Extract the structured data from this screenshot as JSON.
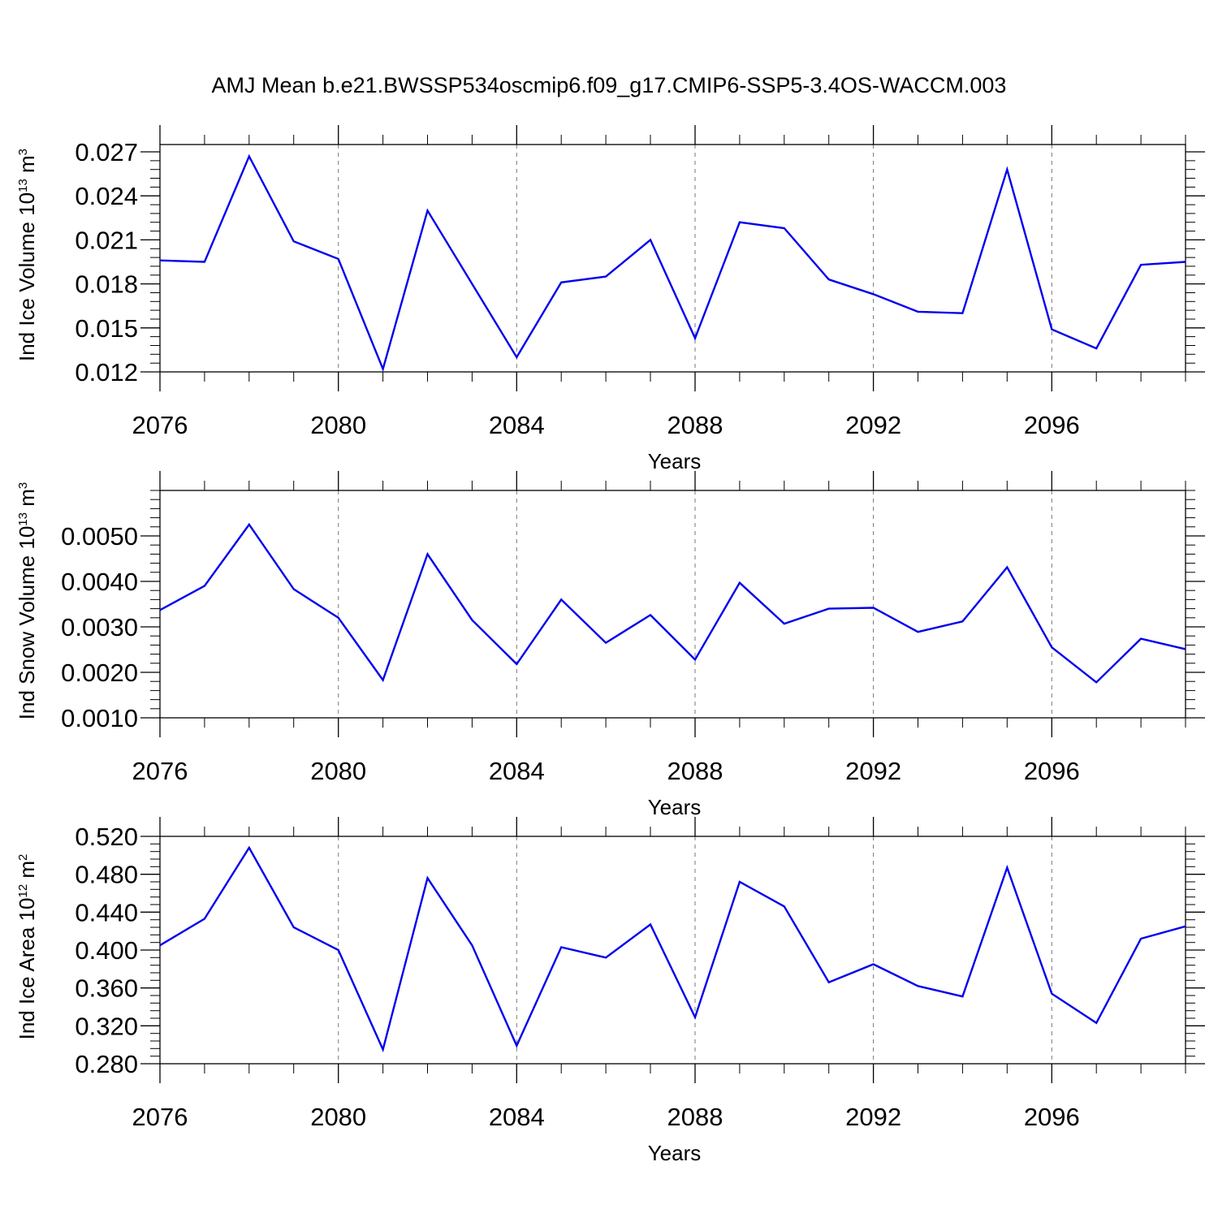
{
  "figure": {
    "title": "AMJ Mean b.e21.BWSSP534oscmip6.f09_g17.CMIP6-SSP5-3.4OS-WACCM.003"
  },
  "chart_data": [
    {
      "type": "line",
      "ylabel_main": "Ind Ice Volume 10",
      "ylabel_exp": "13",
      "ylabel_unit": " m",
      "ylabel_unit_exp": "3",
      "xlabel": "Years",
      "xlim": [
        2076,
        2099
      ],
      "ylim": [
        0.012,
        0.0275
      ],
      "yticks": [
        0.012,
        0.015,
        0.018,
        0.021,
        0.024,
        0.027
      ],
      "ytick_labels": [
        "0.012",
        "0.015",
        "0.018",
        "0.021",
        "0.024",
        "0.027"
      ],
      "yminor_step": 0.0006,
      "xticks": [
        2076,
        2080,
        2084,
        2088,
        2092,
        2096
      ],
      "xtick_labels": [
        "2076",
        "2080",
        "2084",
        "2088",
        "2092",
        "2096"
      ],
      "grid": "vertical-dashed",
      "line_color": "#0000ee",
      "series": [
        {
          "x": [
            2076,
            2077,
            2078,
            2079,
            2080,
            2081,
            2082,
            2083,
            2084,
            2085,
            2086,
            2087,
            2088,
            2089,
            2090,
            2091,
            2092,
            2093,
            2094,
            2095,
            2096,
            2097,
            2098,
            2099
          ],
          "values": [
            0.0196,
            0.0195,
            0.0267,
            0.0209,
            0.0197,
            0.0122,
            0.023,
            0.018,
            0.013,
            0.0181,
            0.0185,
            0.021,
            0.0143,
            0.0222,
            0.0218,
            0.0183,
            0.0173,
            0.0161,
            0.016,
            0.0258,
            0.0149,
            0.0136,
            0.0193,
            0.0195
          ]
        }
      ]
    },
    {
      "type": "line",
      "ylabel_main": "Ind Snow Volume 10",
      "ylabel_exp": "13",
      "ylabel_unit": " m",
      "ylabel_unit_exp": "3",
      "xlabel": "Years",
      "xlim": [
        2076,
        2099
      ],
      "ylim": [
        0.001,
        0.006
      ],
      "yticks": [
        0.001,
        0.002,
        0.003,
        0.004,
        0.005
      ],
      "ytick_labels": [
        "0.0010",
        "0.0020",
        "0.0030",
        "0.0040",
        "0.0050"
      ],
      "yminor_step": 0.0002,
      "xticks": [
        2076,
        2080,
        2084,
        2088,
        2092,
        2096
      ],
      "xtick_labels": [
        "2076",
        "2080",
        "2084",
        "2088",
        "2092",
        "2096"
      ],
      "grid": "vertical-dashed",
      "line_color": "#0000ee",
      "series": [
        {
          "x": [
            2076,
            2077,
            2078,
            2079,
            2080,
            2081,
            2082,
            2083,
            2084,
            2085,
            2086,
            2087,
            2088,
            2089,
            2090,
            2091,
            2092,
            2093,
            2094,
            2095,
            2096,
            2097,
            2098,
            2099
          ],
          "values": [
            0.00337,
            0.0039,
            0.00525,
            0.00383,
            0.0032,
            0.00183,
            0.0046,
            0.00315,
            0.00218,
            0.0036,
            0.00265,
            0.00326,
            0.00228,
            0.00397,
            0.00307,
            0.0034,
            0.00342,
            0.00289,
            0.00312,
            0.00431,
            0.00255,
            0.00178,
            0.00274,
            0.00251
          ]
        }
      ]
    },
    {
      "type": "line",
      "ylabel_main": "Ind Ice Area 10",
      "ylabel_exp": "12",
      "ylabel_unit": " m",
      "ylabel_unit_exp": "2",
      "xlabel": "Years",
      "xlim": [
        2076,
        2099
      ],
      "ylim": [
        0.28,
        0.52
      ],
      "yticks": [
        0.28,
        0.32,
        0.36,
        0.4,
        0.44,
        0.48,
        0.52
      ],
      "ytick_labels": [
        "0.280",
        "0.320",
        "0.360",
        "0.400",
        "0.440",
        "0.480",
        "0.520"
      ],
      "yminor_step": 0.008,
      "xticks": [
        2076,
        2080,
        2084,
        2088,
        2092,
        2096
      ],
      "xtick_labels": [
        "2076",
        "2080",
        "2084",
        "2088",
        "2092",
        "2096"
      ],
      "grid": "vertical-dashed",
      "line_color": "#0000ee",
      "series": [
        {
          "x": [
            2076,
            2077,
            2078,
            2079,
            2080,
            2081,
            2082,
            2083,
            2084,
            2085,
            2086,
            2087,
            2088,
            2089,
            2090,
            2091,
            2092,
            2093,
            2094,
            2095,
            2096,
            2097,
            2098,
            2099
          ],
          "values": [
            0.405,
            0.433,
            0.508,
            0.424,
            0.4,
            0.295,
            0.476,
            0.405,
            0.299,
            0.403,
            0.392,
            0.427,
            0.329,
            0.472,
            0.446,
            0.366,
            0.385,
            0.362,
            0.351,
            0.487,
            0.354,
            0.323,
            0.412,
            0.425
          ]
        }
      ]
    }
  ]
}
